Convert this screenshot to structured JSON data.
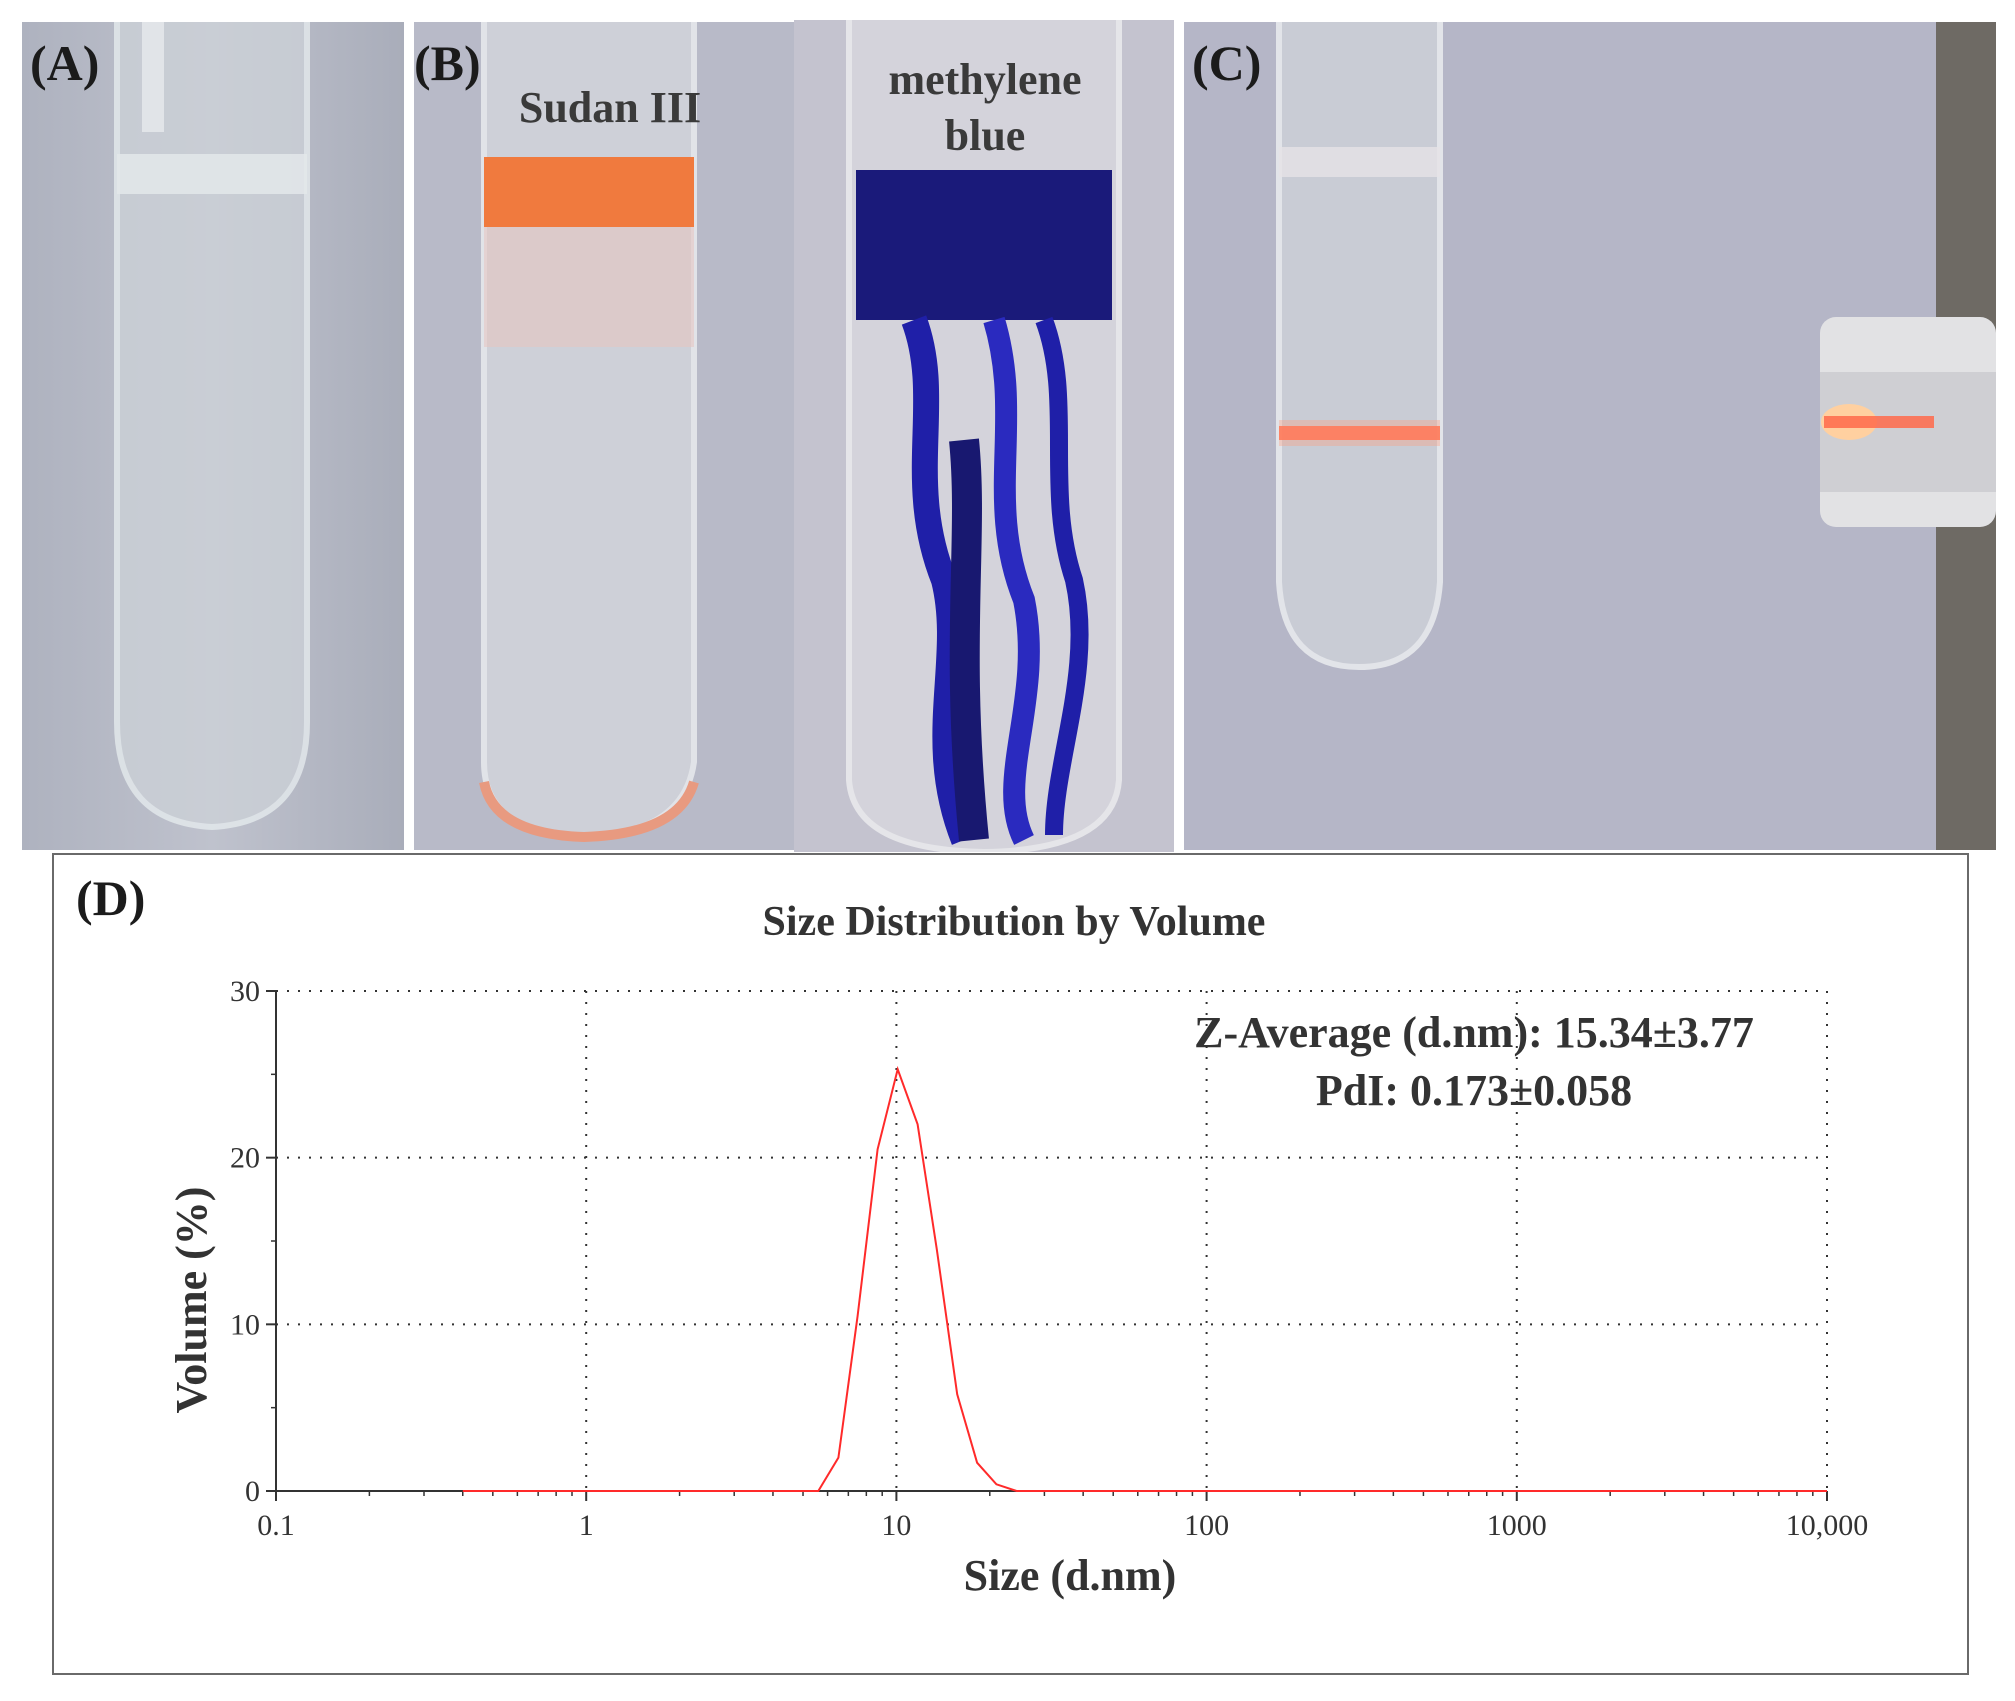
{
  "panels": {
    "a_label": "(A)",
    "b_label": "(B)",
    "c_label": "(C)",
    "d_label": "(D)",
    "sudan_label": "Sudan III",
    "methylene_label_line1": "methylene",
    "methylene_label_line2": "blue"
  },
  "colors": {
    "sudan_band": "#f07a3e",
    "methylene_blue": "#1f1fa8",
    "laser": "#ff6a4a",
    "curve": "#ff2a2a",
    "background_photo": "#b9bcc9"
  },
  "chart_data": {
    "type": "line",
    "title": "Size Distribution by Volume",
    "xlabel": "Size (d.nm)",
    "ylabel": "Volume (%)",
    "x_scale": "log",
    "xlim": [
      0.1,
      10000
    ],
    "ylim": [
      0,
      30
    ],
    "x_ticks": [
      0.1,
      1,
      10,
      100,
      1000,
      10000
    ],
    "x_tick_labels": [
      "0.1",
      "1",
      "10",
      "100",
      "1000",
      "10,000"
    ],
    "y_ticks": [
      0,
      10,
      20,
      30
    ],
    "y_tick_labels": [
      "0",
      "10",
      "20",
      "30"
    ],
    "grid": true,
    "annotations": [
      "Z-Average (d.nm): 15.34±3.77",
      "PdI: 0.173±0.058"
    ],
    "series": [
      {
        "x": [
          0.4,
          1,
          3,
          5.6,
          6.5,
          7.5,
          8.7,
          10.1,
          11.7,
          13.5,
          15.7,
          18.2,
          21.0,
          24.4,
          30,
          100,
          1000,
          10000
        ],
        "y": [
          0,
          0,
          0,
          0,
          2.0,
          10.5,
          20.5,
          25.3,
          22.0,
          14.5,
          5.8,
          1.7,
          0.4,
          0,
          0,
          0,
          0,
          0
        ]
      }
    ]
  }
}
